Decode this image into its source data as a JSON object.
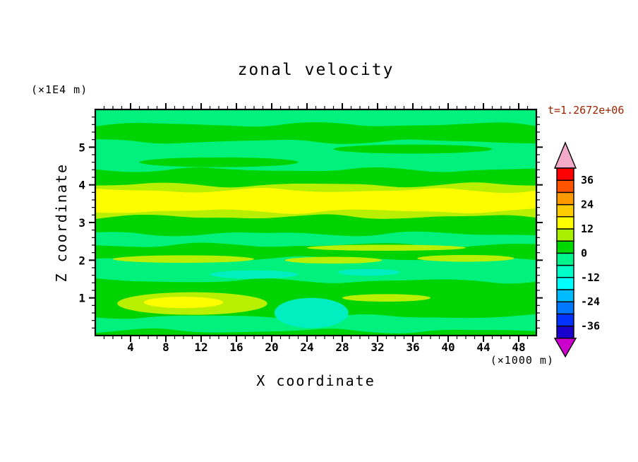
{
  "header": {
    "title": "zonal velocity",
    "time_label": "t=1.2672e+06",
    "time_color": "#9b2300"
  },
  "axes": {
    "x": {
      "label": "X coordinate",
      "unit": "(×1000 m)",
      "tick_values": [
        4,
        8,
        12,
        16,
        20,
        24,
        28,
        32,
        36,
        40,
        44,
        48
      ],
      "tick_labels": [
        "4",
        "8",
        "12",
        "16",
        "20",
        "24",
        "28",
        "32",
        "36",
        "40",
        "44",
        "48"
      ],
      "range": [
        0,
        50
      ],
      "minor_step": 1
    },
    "y": {
      "label": "Z coordinate",
      "unit": "(×1E4 m)",
      "tick_values": [
        1,
        2,
        3,
        4,
        5
      ],
      "tick_labels": [
        "1",
        "2",
        "3",
        "4",
        "5"
      ],
      "range": [
        0,
        6
      ],
      "minor_step": 0.2
    }
  },
  "colorbar": {
    "tick_labels": [
      "36",
      "24",
      "12",
      "0",
      "-12",
      "-24",
      "-36"
    ],
    "levels": {
      "min": -42,
      "max": 42,
      "step": 6
    },
    "segment_colors_bottom_to_top": [
      "#1a00cc",
      "#0033ff",
      "#0077ff",
      "#00bbff",
      "#00ffff",
      "#00ffc8",
      "#00f58c",
      "#00d900",
      "#aaee00",
      "#ffff00",
      "#ffcc00",
      "#ff9900",
      "#ff5500",
      "#ff0000"
    ],
    "arrow_top_color": "#f2aac8",
    "arrow_bottom_color": "#cc00cc"
  },
  "chart_data": {
    "type": "heatmap",
    "title": "zonal velocity",
    "xlabel": "X coordinate",
    "x_units": "×1000 m",
    "ylabel": "Z coordinate",
    "y_units": "×1E4 m",
    "time": "t=1.2672e+06",
    "xlim": [
      0,
      50
    ],
    "ylim": [
      0,
      6
    ],
    "value_range": [
      -42,
      42
    ],
    "contour_step": 6,
    "bands": [
      {
        "z_top": 6.0,
        "color": "#00f27d",
        "value": -3
      },
      {
        "z_top": 5.6,
        "color": "#00d400",
        "value": 3
      },
      {
        "z_top": 5.15,
        "color": "#00f27d",
        "value": -3
      },
      {
        "z_top": 4.4,
        "color": "#00d400",
        "value": 3
      },
      {
        "z_top": 4.0,
        "color": "#b8f000",
        "value": 9
      },
      {
        "z_top": 3.85,
        "color": "#fdfd00",
        "value": 15
      },
      {
        "z_top": 3.3,
        "color": "#b8f000",
        "value": 9
      },
      {
        "z_top": 3.15,
        "color": "#00d400",
        "value": 3
      },
      {
        "z_top": 2.7,
        "color": "#00f27d",
        "value": -3
      },
      {
        "z_top": 2.4,
        "color": "#00d400",
        "value": 3
      },
      {
        "z_top": 2.05,
        "color": "#00f27d",
        "value": -3
      },
      {
        "z_top": 1.45,
        "color": "#00d400",
        "value": 3
      },
      {
        "z_top": 0.5,
        "color": "#00f27d",
        "value": -3
      },
      {
        "z_top": 0.12,
        "color": "#00d400",
        "value": 3
      }
    ],
    "features": [
      {
        "shape": "ellipse",
        "x": 14,
        "z": 4.6,
        "rx": 9,
        "rz": 0.13,
        "color": "#00d400",
        "value": 3
      },
      {
        "shape": "ellipse",
        "x": 36,
        "z": 4.95,
        "rx": 9,
        "rz": 0.12,
        "color": "#00d400",
        "value": 3
      },
      {
        "shape": "ellipse",
        "x": 10,
        "z": 2.03,
        "rx": 8,
        "rz": 0.1,
        "color": "#b8f000",
        "value": 9
      },
      {
        "shape": "ellipse",
        "x": 27,
        "z": 2.0,
        "rx": 5.5,
        "rz": 0.09,
        "color": "#b8f000",
        "value": 9
      },
      {
        "shape": "ellipse",
        "x": 42,
        "z": 2.05,
        "rx": 5.5,
        "rz": 0.09,
        "color": "#b8f000",
        "value": 9
      },
      {
        "shape": "ellipse",
        "x": 33,
        "z": 2.33,
        "rx": 9,
        "rz": 0.08,
        "color": "#b8f000",
        "value": 9
      },
      {
        "shape": "ellipse",
        "x": 18,
        "z": 1.62,
        "rx": 5,
        "rz": 0.11,
        "color": "#00eec0",
        "value": -9
      },
      {
        "shape": "ellipse",
        "x": 31,
        "z": 1.68,
        "rx": 3.5,
        "rz": 0.09,
        "color": "#00eec0",
        "value": -9
      },
      {
        "shape": "ellipse",
        "x": 11,
        "z": 0.85,
        "rx": 8.5,
        "rz": 0.3,
        "color": "#b8f000",
        "value": 9
      },
      {
        "shape": "ellipse",
        "x": 10,
        "z": 0.88,
        "rx": 4.5,
        "rz": 0.15,
        "color": "#fdfd00",
        "value": 15
      },
      {
        "shape": "ellipse",
        "x": 33,
        "z": 1.0,
        "rx": 5,
        "rz": 0.1,
        "color": "#b8f000",
        "value": 9
      },
      {
        "shape": "ellipse",
        "x": 24.5,
        "z": 0.6,
        "rx": 4.2,
        "rz": 0.4,
        "color": "#00eec0",
        "value": -9
      }
    ]
  }
}
